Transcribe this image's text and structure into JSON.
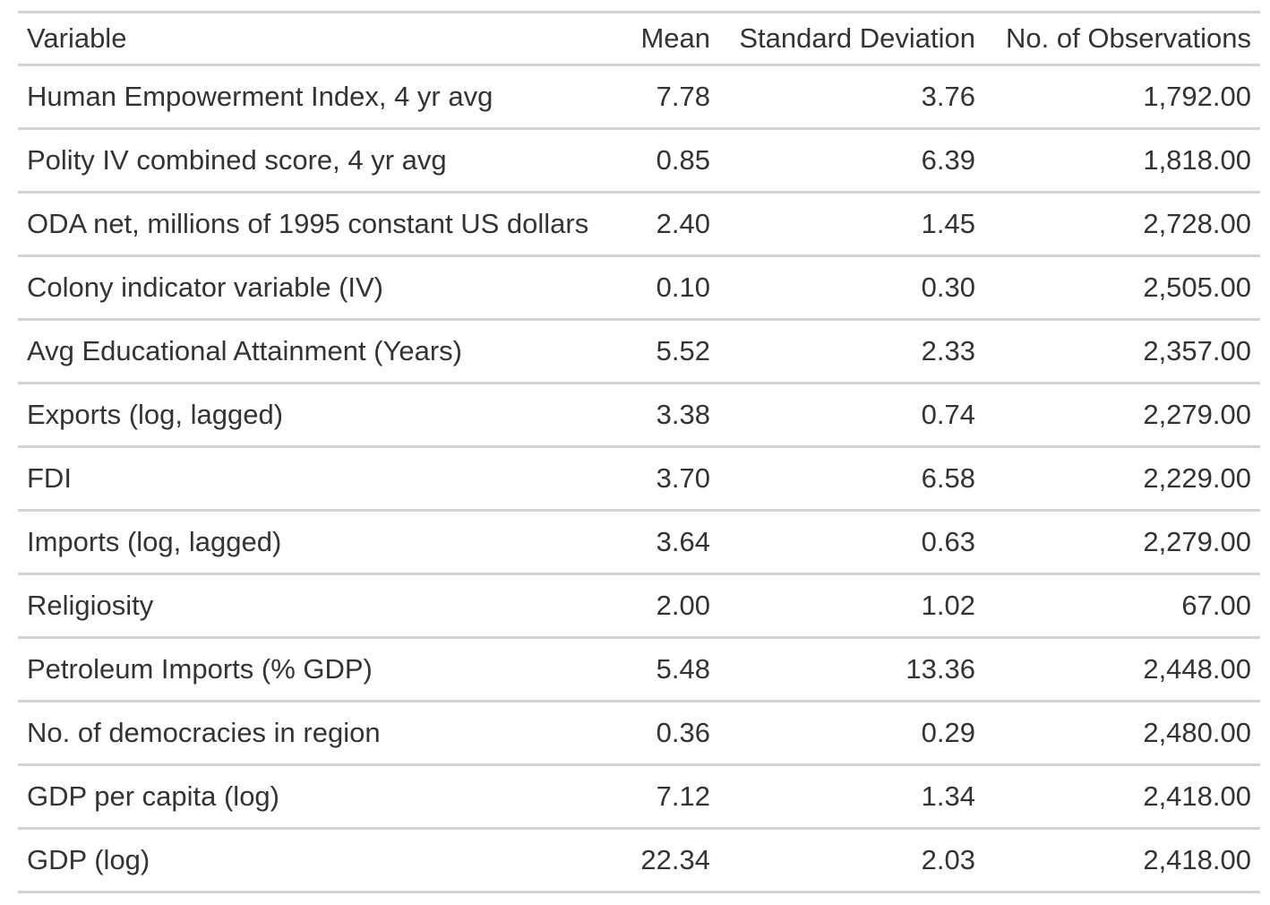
{
  "table": {
    "headers": {
      "variable": "Variable",
      "mean": "Mean",
      "sd": "Standard Deviation",
      "obs": "No. of Observations"
    },
    "rows": [
      {
        "variable": "Human Empowerment Index, 4 yr avg",
        "mean": "7.78",
        "sd": "3.76",
        "obs": "1,792.00"
      },
      {
        "variable": "Polity IV combined score, 4 yr avg",
        "mean": "0.85",
        "sd": "6.39",
        "obs": "1,818.00"
      },
      {
        "variable": "ODA net, millions of 1995 constant US dollars",
        "mean": "2.40",
        "sd": "1.45",
        "obs": "2,728.00"
      },
      {
        "variable": "Colony indicator variable (IV)",
        "mean": "0.10",
        "sd": "0.30",
        "obs": "2,505.00"
      },
      {
        "variable": "Avg Educational Attainment (Years)",
        "mean": "5.52",
        "sd": "2.33",
        "obs": "2,357.00"
      },
      {
        "variable": "Exports (log, lagged)",
        "mean": "3.38",
        "sd": "0.74",
        "obs": "2,279.00"
      },
      {
        "variable": "FDI",
        "mean": "3.70",
        "sd": "6.58",
        "obs": "2,229.00"
      },
      {
        "variable": "Imports (log, lagged)",
        "mean": "3.64",
        "sd": "0.63",
        "obs": "2,279.00"
      },
      {
        "variable": "Religiosity",
        "mean": "2.00",
        "sd": "1.02",
        "obs": "67.00"
      },
      {
        "variable": "Petroleum Imports (% GDP)",
        "mean": "5.48",
        "sd": "13.36",
        "obs": "2,448.00"
      },
      {
        "variable": "No. of democracies in region",
        "mean": "0.36",
        "sd": "0.29",
        "obs": "2,480.00"
      },
      {
        "variable": "GDP per capita (log)",
        "mean": "7.12",
        "sd": "1.34",
        "obs": "2,418.00"
      },
      {
        "variable": "GDP (log)",
        "mean": "22.34",
        "sd": "2.03",
        "obs": "2,418.00"
      }
    ]
  }
}
